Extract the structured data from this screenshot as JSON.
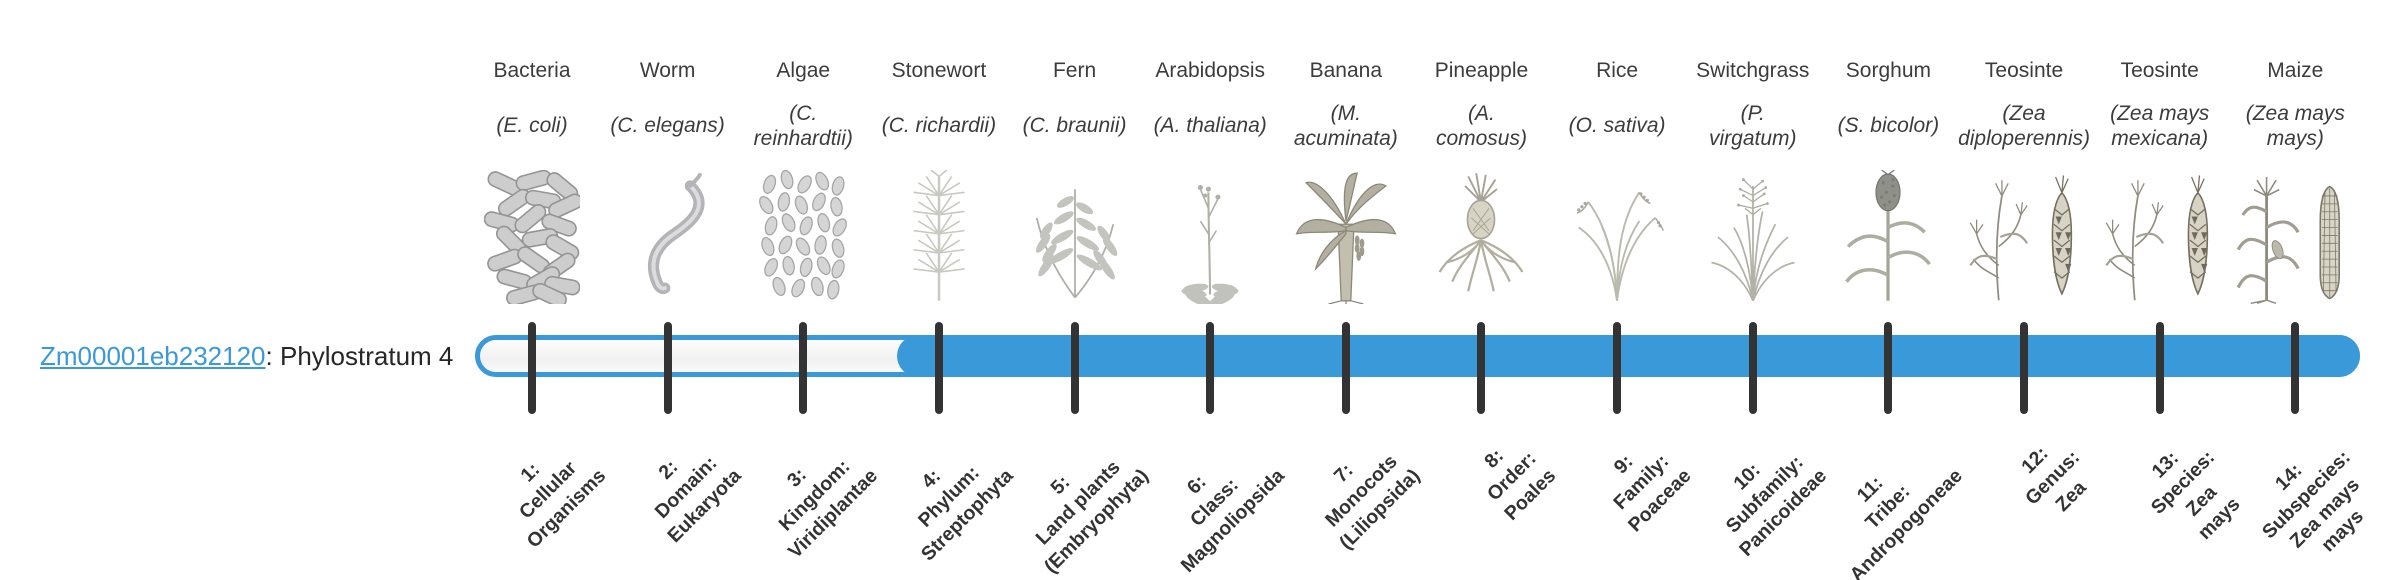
{
  "gene": {
    "id": "Zm00001eb232120",
    "caption_suffix": ": Phylostratum 4",
    "phylostratum": 4
  },
  "colors": {
    "bar_blue": "#3a99d8",
    "tick": "#333333",
    "text": "#3c3c3c",
    "link_blue": "#3a99d8"
  },
  "timeline": {
    "total_strata": 14,
    "filled_from_stratum": 4
  },
  "strata": [
    {
      "number": 1,
      "common_name": "Bacteria",
      "scientific_name": "(E. coli)",
      "rank_label": "1:\nCellular\nOrganisms",
      "icon": "bacteria"
    },
    {
      "number": 2,
      "common_name": "Worm",
      "scientific_name": "(C. elegans)",
      "rank_label": "2:\nDomain:\nEukaryota",
      "icon": "worm"
    },
    {
      "number": 3,
      "common_name": "Algae",
      "scientific_name": "(C.\nreinhardtii)",
      "rank_label": "3:\nKingdom:\nViridiplantae",
      "icon": "algae"
    },
    {
      "number": 4,
      "common_name": "Stonewort",
      "scientific_name": "(C. richardii)",
      "rank_label": "4:\nPhylum:\nStreptophyta",
      "icon": "stonewort"
    },
    {
      "number": 5,
      "common_name": "Fern",
      "scientific_name": "(C. braunii)",
      "rank_label": "5:\nLand plants\n(Embryophyta)",
      "icon": "fern"
    },
    {
      "number": 6,
      "common_name": "Arabidopsis",
      "scientific_name": "(A. thaliana)",
      "rank_label": "6:\nClass:\nMagnoliopsida",
      "icon": "arabidopsis"
    },
    {
      "number": 7,
      "common_name": "Banana",
      "scientific_name": "(M.\nacuminata)",
      "rank_label": "7:\nMonocots\n(Liliopsida)",
      "icon": "banana"
    },
    {
      "number": 8,
      "common_name": "Pineapple",
      "scientific_name": "(A.\ncomosus)",
      "rank_label": "8:\nOrder:\nPoales",
      "icon": "pineapple"
    },
    {
      "number": 9,
      "common_name": "Rice",
      "scientific_name": "(O. sativa)",
      "rank_label": "9:\nFamily:\nPoaceae",
      "icon": "rice"
    },
    {
      "number": 10,
      "common_name": "Switchgrass",
      "scientific_name": "(P.\nvirgatum)",
      "rank_label": "10:\nSubfamily:\nPanicoideae",
      "icon": "switchgrass"
    },
    {
      "number": 11,
      "common_name": "Sorghum",
      "scientific_name": "(S. bicolor)",
      "rank_label": "11:\nTribe:\nAndropogoneae",
      "icon": "sorghum"
    },
    {
      "number": 12,
      "common_name": "Teosinte",
      "scientific_name": "(Zea\ndiploperennis)",
      "rank_label": "12:\nGenus:\nZea",
      "icon": "teosinte"
    },
    {
      "number": 13,
      "common_name": "Teosinte",
      "scientific_name": "(Zea mays\nmexicana)",
      "rank_label": "13:\nSpecies:\nZea\nmays",
      "icon": "teosinte"
    },
    {
      "number": 14,
      "common_name": "Maize",
      "scientific_name": "(Zea mays\nmays)",
      "rank_label": "14:\nSubspecies:\nZea mays\nmays",
      "icon": "maize"
    }
  ]
}
